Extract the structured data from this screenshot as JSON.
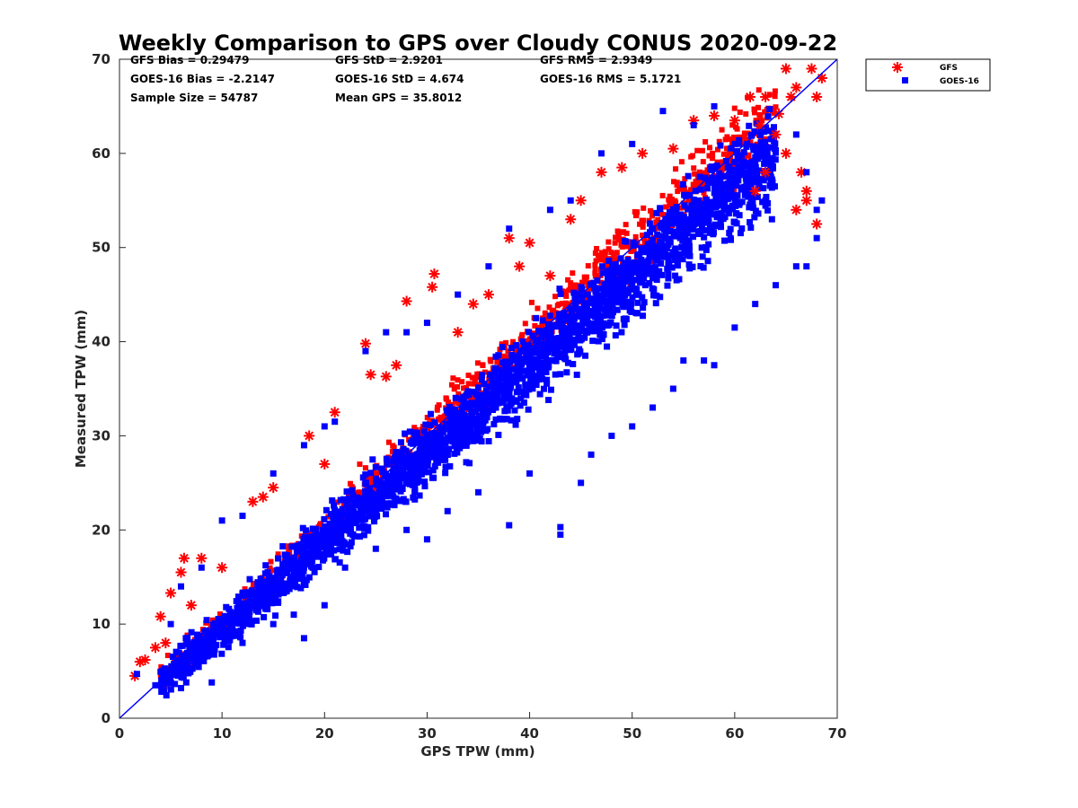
{
  "chart_data": {
    "type": "scatter",
    "title": "Weekly Comparison to GPS over Cloudy CONUS 2020-09-22",
    "xlabel": "GPS TPW (mm)",
    "ylabel": "Measured TPW (mm)",
    "xlim": [
      0,
      70
    ],
    "ylim": [
      0,
      70
    ],
    "xticks": [
      "0",
      "10",
      "20",
      "30",
      "40",
      "50",
      "60",
      "70"
    ],
    "yticks": [
      "0",
      "10",
      "20",
      "30",
      "40",
      "50",
      "60",
      "70"
    ],
    "grid": false,
    "legend_position": "top-right outside",
    "series": [
      {
        "name": "GFS",
        "marker": "asterisk",
        "color": "#ff0000",
        "points": [
          [
            1.5,
            4.5
          ],
          [
            2,
            6
          ],
          [
            2.5,
            6.2
          ],
          [
            3.5,
            7.5
          ],
          [
            4,
            10.8
          ],
          [
            4.5,
            8
          ],
          [
            5,
            13.3
          ],
          [
            6,
            15.5
          ],
          [
            6.3,
            17
          ],
          [
            7,
            12
          ],
          [
            8,
            17
          ],
          [
            10,
            16
          ],
          [
            13,
            23
          ],
          [
            14,
            23.5
          ],
          [
            15,
            24.5
          ],
          [
            18.5,
            30
          ],
          [
            20,
            27
          ],
          [
            21,
            32.5
          ],
          [
            24,
            39.8
          ],
          [
            24.5,
            36.5
          ],
          [
            26,
            36.3
          ],
          [
            27,
            37.5
          ],
          [
            28,
            44.3
          ],
          [
            30.5,
            45.8
          ],
          [
            30.7,
            47.2
          ],
          [
            33,
            41
          ],
          [
            34.5,
            44
          ],
          [
            36,
            45
          ],
          [
            38,
            51
          ],
          [
            39,
            48
          ],
          [
            40,
            50.5
          ],
          [
            42,
            47
          ],
          [
            44,
            53
          ],
          [
            45,
            55
          ],
          [
            47,
            58
          ],
          [
            49,
            58.5
          ],
          [
            51,
            60
          ],
          [
            54,
            60.5
          ],
          [
            56,
            63.5
          ],
          [
            58,
            64
          ],
          [
            60,
            63.5
          ],
          [
            61.5,
            66
          ],
          [
            62.5,
            63
          ],
          [
            63,
            66
          ],
          [
            64,
            62
          ],
          [
            64.3,
            64.2
          ],
          [
            65,
            69
          ],
          [
            65.5,
            66
          ],
          [
            66,
            67
          ],
          [
            66.5,
            58
          ],
          [
            67,
            56
          ],
          [
            67.5,
            69
          ],
          [
            68,
            66
          ],
          [
            68.5,
            68
          ],
          [
            67,
            55
          ],
          [
            68,
            52.5
          ],
          [
            62,
            56
          ],
          [
            63,
            58
          ],
          [
            65,
            60
          ],
          [
            66,
            54
          ]
        ]
      },
      {
        "name": "GOES-16",
        "marker": "square",
        "color": "#0000ff",
        "points": [
          [
            1.7,
            4.7
          ],
          [
            3.5,
            3.5
          ],
          [
            6,
            3.2
          ],
          [
            9,
            3.8
          ],
          [
            12,
            8
          ],
          [
            15,
            10
          ],
          [
            17,
            11
          ],
          [
            18,
            8.5
          ],
          [
            20,
            12
          ],
          [
            22,
            16
          ],
          [
            25,
            18
          ],
          [
            28,
            20
          ],
          [
            30,
            19
          ],
          [
            32,
            22
          ],
          [
            35,
            24
          ],
          [
            38,
            20.5
          ],
          [
            40,
            26
          ],
          [
            43,
            19.5
          ],
          [
            43,
            20.3
          ],
          [
            45,
            25
          ],
          [
            46,
            28
          ],
          [
            48,
            30
          ],
          [
            50,
            31
          ],
          [
            52,
            33
          ],
          [
            54,
            35
          ],
          [
            55,
            38
          ],
          [
            57,
            38
          ],
          [
            58,
            37.5
          ],
          [
            60,
            41.5
          ],
          [
            62,
            44
          ],
          [
            64,
            46
          ],
          [
            66,
            48
          ],
          [
            67,
            48
          ],
          [
            68,
            51
          ],
          [
            68.5,
            55
          ],
          [
            67,
            58
          ],
          [
            68,
            54
          ],
          [
            66,
            62
          ],
          [
            63,
            55
          ],
          [
            60,
            61
          ],
          [
            58,
            65
          ],
          [
            56,
            63
          ],
          [
            53,
            64.5
          ],
          [
            50,
            61
          ],
          [
            47,
            60
          ],
          [
            44,
            55
          ],
          [
            42,
            54
          ],
          [
            38,
            52
          ],
          [
            36,
            48
          ],
          [
            33,
            45
          ],
          [
            30,
            42
          ],
          [
            28,
            41
          ],
          [
            26,
            41
          ],
          [
            24,
            39
          ],
          [
            21,
            31.5
          ],
          [
            20,
            31
          ],
          [
            18,
            29
          ],
          [
            15,
            26
          ],
          [
            12,
            21.5
          ],
          [
            10,
            21
          ],
          [
            8,
            16
          ],
          [
            6,
            14
          ],
          [
            5,
            10
          ]
        ]
      }
    ],
    "reference_line": {
      "from": [
        0,
        0
      ],
      "to": [
        70,
        70
      ],
      "color": "#0000ff"
    },
    "stats": [
      [
        "GFS Bias = 0.29479",
        "GFS StD = 2.9201",
        "GFS RMS = 2.9349"
      ],
      [
        "GOES-16 Bias = -2.2147",
        "GOES-16 StD = 4.674",
        "GOES-16 RMS = 5.1721"
      ],
      [
        "Sample Size = 54787",
        "Mean GPS = 35.8012",
        ""
      ]
    ]
  }
}
